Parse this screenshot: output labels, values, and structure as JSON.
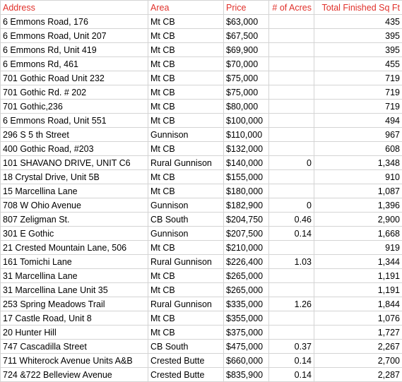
{
  "header": [
    "Address",
    "Area",
    "Price",
    "# of Acres",
    "Total Finished Sq Ft"
  ],
  "rows": [
    {
      "address": "6 Emmons Road, 176",
      "area": "Mt CB",
      "price": "$63,000",
      "sqft": "435"
    },
    {
      "address": "6 Emmons Road, Unit 207",
      "area": "Mt CB",
      "price": "$67,500",
      "sqft": "395"
    },
    {
      "address": "6 Emmons Rd, Unit 419",
      "area": "Mt CB",
      "price": "$69,900",
      "sqft": "395"
    },
    {
      "address": "6 Emmons Rd, 461",
      "area": "Mt CB",
      "price": "$70,000",
      "sqft": "455"
    },
    {
      "address": "701 Gothic Road Unit 232",
      "area": "Mt CB",
      "price": "$75,000",
      "sqft": "719"
    },
    {
      "address": "701 Gothic Rd. # 202",
      "area": "Mt CB",
      "price": "$75,000",
      "sqft": "719"
    },
    {
      "address": "701 Gothic,236",
      "area": "Mt CB",
      "price": "$80,000",
      "sqft": "719"
    },
    {
      "address": "6 Emmons Road, Unit 551",
      "area": "Mt CB",
      "price": "$100,000",
      "sqft": "494"
    },
    {
      "address": "296 S 5 th Street",
      "area": "Gunnison",
      "price": "$110,000",
      "sqft": "967"
    },
    {
      "address": "400 Gothic Road, #203",
      "area": "Mt CB",
      "price": "$132,000",
      "sqft": "608"
    },
    {
      "address": "101 SHAVANO DRIVE, UNIT C6",
      "area": "Rural Gunnison",
      "price": "$140,000",
      "acres": "0",
      "sqft": "1,348"
    },
    {
      "address": "18 Crystal Drive, Unit 5B",
      "area": "Mt CB",
      "price": "$155,000",
      "sqft": "910"
    },
    {
      "address": "15 Marcellina Lane",
      "area": "Mt CB",
      "price": "$180,000",
      "sqft": "1,087"
    },
    {
      "address": "708 W Ohio Avenue",
      "area": "Gunnison",
      "price": "$182,900",
      "acres": "0",
      "sqft": "1,396"
    },
    {
      "address": "807 Zeligman St.",
      "area": "CB South",
      "price": "$204,750",
      "acres": "0.46",
      "sqft": "2,900"
    },
    {
      "address": "301 E Gothic",
      "area": "Gunnison",
      "price": "$207,500",
      "acres": "0.14",
      "sqft": "1,668"
    },
    {
      "address": "21 Crested Mountain Lane, 506",
      "area": "Mt CB",
      "price": "$210,000",
      "sqft": "919"
    },
    {
      "address": "161 Tomichi Lane",
      "area": "Rural Gunnison",
      "price": "$226,400",
      "acres": "1.03",
      "sqft": "1,344"
    },
    {
      "address": "31 Marcellina Lane",
      "area": "Mt CB",
      "price": "$265,000",
      "sqft": "1,191"
    },
    {
      "address": "31 Marcellina Lane Unit 35",
      "area": "Mt CB",
      "price": "$265,000",
      "sqft": "1,191"
    },
    {
      "address": "253 Spring Meadows Trail",
      "area": "Rural Gunnison",
      "price": "$335,000",
      "acres": "1.26",
      "sqft": "1,844"
    },
    {
      "address": "17 Castle Road, Unit 8",
      "area": "Mt CB",
      "price": "$355,000",
      "sqft": "1,076"
    },
    {
      "address": "20 Hunter Hill",
      "area": "Mt CB",
      "price": "$375,000",
      "sqft": "1,727"
    },
    {
      "address": "747 Cascadilla Street",
      "area": "CB South",
      "price": "$475,000",
      "acres": "0.37",
      "sqft": "2,267"
    },
    {
      "address": "711 Whiterock Avenue Units A&B",
      "area": "Crested Butte",
      "price": "$660,000",
      "acres": "0.14",
      "sqft": "2,700"
    },
    {
      "address": "724 &722 Belleview Avenue",
      "area": "Crested Butte",
      "price": "$835,900",
      "acres": "0.14",
      "sqft": "2,287"
    }
  ]
}
